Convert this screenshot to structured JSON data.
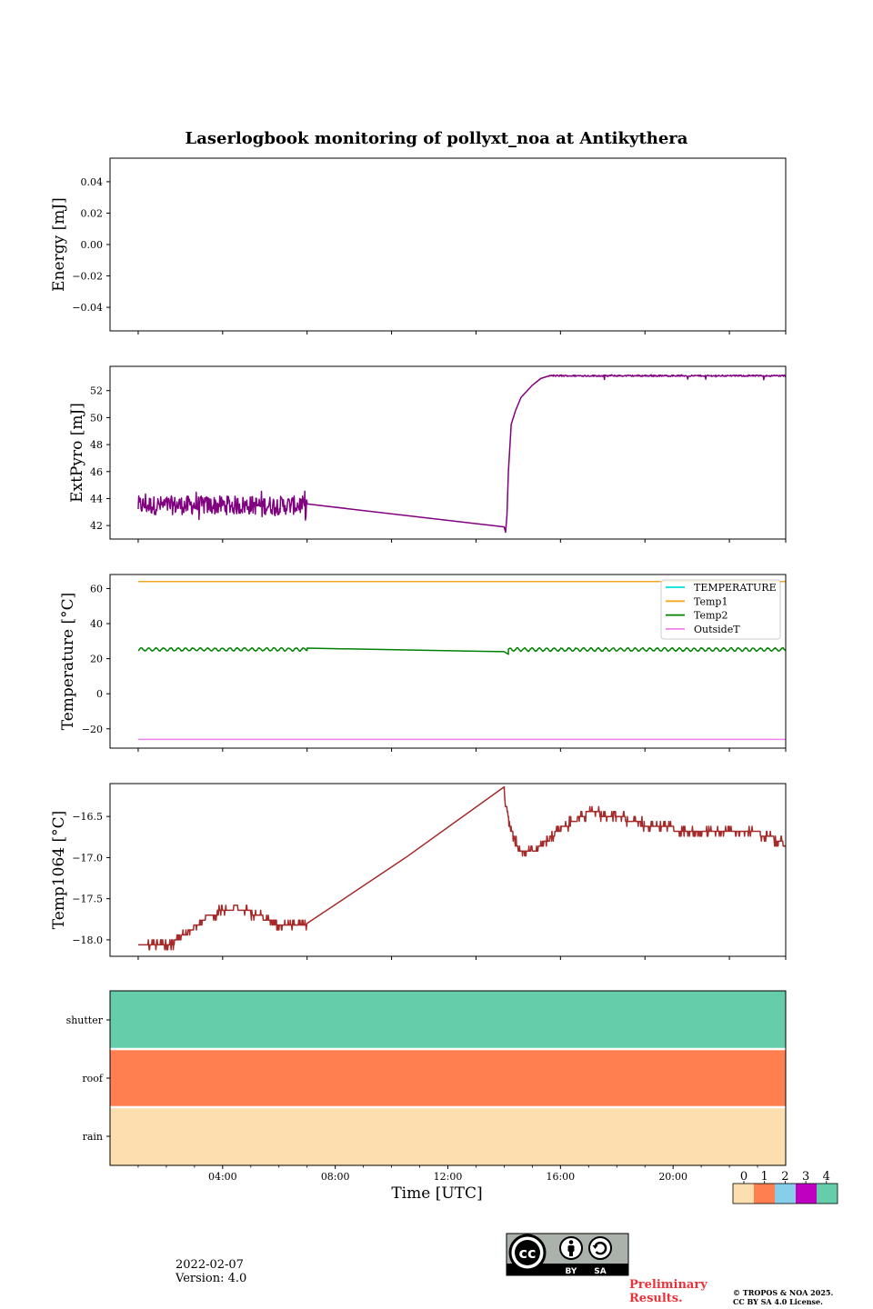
{
  "title": "Laserlogbook monitoring of pollyxt_noa at Antikythera",
  "footer": {
    "date": "2022-02-07",
    "version": "Version: 4.0",
    "preliminary_line1": "Preliminary",
    "preliminary_line2": "Results.",
    "copyright_line1": "© TROPOS & NOA 2025.",
    "copyright_line2": "CC BY SA 4.0 License.",
    "license_badge": {
      "cc": "cc",
      "by": "BY",
      "sa": "SA",
      "icons": [
        "cc-icon",
        "attribution-icon",
        "share-alike-icon"
      ]
    }
  },
  "colorbar": {
    "ticks": [
      "0",
      "1",
      "2",
      "3",
      "4"
    ],
    "colors": [
      "#fddeaf",
      "#ff7f50",
      "#87ceeb",
      "#c000c0",
      "#66cdaa"
    ]
  },
  "chart_data": [
    {
      "type": "line",
      "ylabel": "Energy [mJ]",
      "xlim": [
        0,
        24
      ],
      "ylim": [
        -0.055,
        0.055
      ],
      "yticks": [
        0.04,
        0.02,
        0.0,
        -0.02,
        -0.04
      ],
      "ytick_labels": [
        "0.04",
        "0.02",
        "0.00",
        "−0.02",
        "−0.04"
      ],
      "series": []
    },
    {
      "type": "line",
      "ylabel": "ExtPyro [mJ]",
      "xlim": [
        0,
        24
      ],
      "ylim": [
        41.0,
        53.8
      ],
      "yticks": [
        42,
        44,
        46,
        48,
        50,
        52
      ],
      "ytick_labels": [
        "42",
        "44",
        "46",
        "48",
        "50",
        "52"
      ],
      "series": [
        {
          "color": "#800080",
          "segments": [
            {
              "x_start": 1.0,
              "x_end": 7.0,
              "mean": 43.5,
              "noise": 0.7
            },
            {
              "points": [
                [
                  7.0,
                  43.6
                ],
                [
                  14.0,
                  41.9
                ],
                [
                  14.05,
                  41.5
                ],
                [
                  14.1,
                  42.8
                ],
                [
                  14.15,
                  46.0
                ],
                [
                  14.25,
                  49.5
                ],
                [
                  14.4,
                  50.5
                ],
                [
                  14.6,
                  51.5
                ],
                [
                  15.0,
                  52.4
                ],
                [
                  15.3,
                  52.9
                ],
                [
                  15.6,
                  53.1
                ]
              ]
            },
            {
              "x_start": 15.6,
              "x_end": 24.0,
              "mean": 53.1,
              "noise": 0.05
            }
          ]
        }
      ]
    },
    {
      "type": "line",
      "ylabel": "Temperature [°C]",
      "xlim": [
        0,
        24
      ],
      "ylim": [
        -31,
        68
      ],
      "yticks": [
        60,
        40,
        20,
        0,
        -20
      ],
      "ytick_labels": [
        "60",
        "40",
        "20",
        "0",
        "−20"
      ],
      "legend_position": "upper-right",
      "series": [
        {
          "name": "TEMPERATURE",
          "color": "#00e0e0",
          "values": []
        },
        {
          "name": "Temp1",
          "color": "#f5a623",
          "points": [
            [
              1.0,
              64.0
            ],
            [
              24.0,
              64.0
            ]
          ]
        },
        {
          "name": "Temp2",
          "color": "#008000",
          "segments": [
            {
              "x_start": 1.0,
              "x_end": 7.0,
              "mean": 25.3,
              "amplitude": 1.0
            },
            {
              "points": [
                [
                  7.0,
                  26.0
                ],
                [
                  14.0,
                  24.0
                ],
                [
                  14.15,
                  22.5
                ]
              ]
            },
            {
              "x_start": 14.15,
              "x_end": 24.0,
              "mean": 25.2,
              "amplitude": 1.1
            }
          ]
        },
        {
          "name": "OutsideT",
          "color": "#ee82ee",
          "points": [
            [
              1.0,
              -26.0
            ],
            [
              24.0,
              -26.0
            ]
          ]
        }
      ]
    },
    {
      "type": "line",
      "ylabel": "Temp1064 [°C]",
      "xlim": [
        0,
        24
      ],
      "ylim": [
        -18.2,
        -16.1
      ],
      "yticks": [
        -16.5,
        -17.0,
        -17.5,
        -18.0
      ],
      "ytick_labels": [
        "−16.5",
        "−17.0",
        "−17.5",
        "−18.0"
      ],
      "series": [
        {
          "color": "#a52a2a",
          "points": [
            [
              1.0,
              -18.05
            ],
            [
              2.2,
              -18.05
            ],
            [
              2.8,
              -17.9
            ],
            [
              3.5,
              -17.7
            ],
            [
              4.5,
              -17.6
            ],
            [
              5.2,
              -17.7
            ],
            [
              6.0,
              -17.8
            ],
            [
              7.0,
              -17.8
            ],
            [
              14.0,
              -16.2
            ],
            [
              14.2,
              -16.6
            ],
            [
              14.5,
              -16.9
            ],
            [
              15.0,
              -16.95
            ],
            [
              15.5,
              -16.8
            ],
            [
              16.0,
              -16.65
            ],
            [
              16.5,
              -16.55
            ],
            [
              17.0,
              -16.45
            ],
            [
              18.0,
              -16.5
            ],
            [
              19.0,
              -16.6
            ],
            [
              20.0,
              -16.65
            ],
            [
              21.0,
              -16.7
            ],
            [
              22.0,
              -16.7
            ],
            [
              23.0,
              -16.7
            ],
            [
              23.5,
              -16.75
            ],
            [
              24.0,
              -16.85
            ]
          ],
          "jitter": 0.06
        }
      ]
    },
    {
      "type": "heatmap",
      "rows": [
        "rain",
        "roof",
        "shutter"
      ],
      "row_values": [
        0,
        1,
        4
      ],
      "xlabel": "Time [UTC]",
      "xlim": [
        0,
        24
      ],
      "xticks": [
        4,
        8,
        12,
        16,
        20
      ],
      "xtick_labels": [
        "04:00",
        "08:00",
        "12:00",
        "16:00",
        "20:00"
      ],
      "colorbar_range": [
        0,
        4
      ]
    }
  ]
}
